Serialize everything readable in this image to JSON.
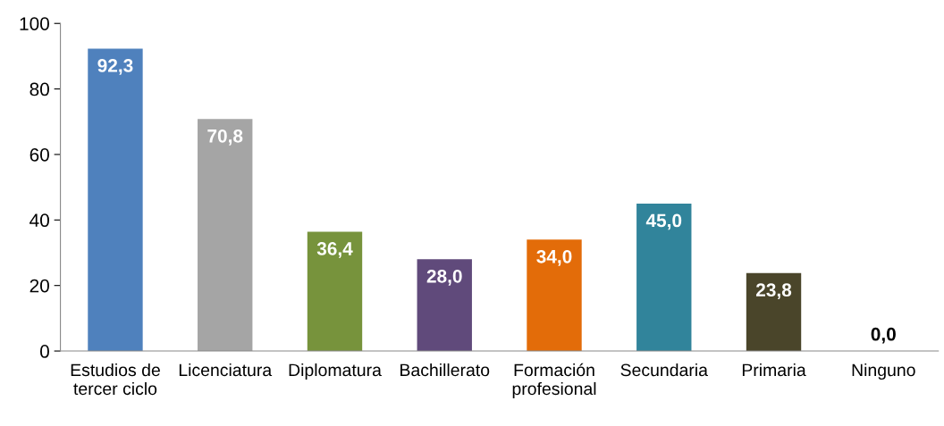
{
  "chart_data": {
    "type": "bar",
    "categories": [
      "Estudios de\ntercer ciclo",
      "Licenciatura",
      "Diplomatura",
      "Bachillerato",
      "Formación\nprofesional",
      "Secundaria",
      "Primaria",
      "Ninguno"
    ],
    "values": [
      92.3,
      70.8,
      36.4,
      28.0,
      34.0,
      45.0,
      23.8,
      0.0
    ],
    "value_labels": [
      "92,3",
      "70,8",
      "36,4",
      "28,0",
      "34,0",
      "45,0",
      "23,8",
      "0,0"
    ],
    "colors": [
      "#4f81bd",
      "#a5a5a5",
      "#77933c",
      "#604a7b",
      "#e36c09",
      "#31849b",
      "#4a452a",
      "#000000"
    ],
    "ylim": [
      0,
      100
    ],
    "yticks": [
      0,
      20,
      40,
      60,
      80,
      100
    ],
    "grid": false,
    "legend": false
  }
}
